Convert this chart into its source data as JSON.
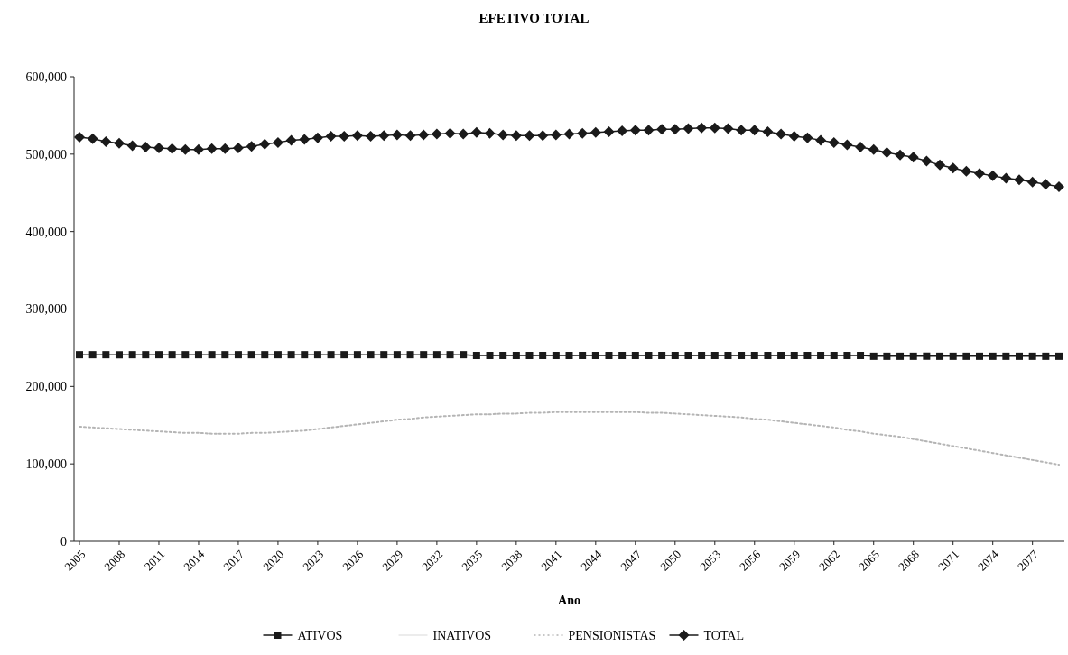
{
  "chart_data": {
    "type": "line",
    "title": "EFETIVO TOTAL",
    "xlabel": "Ano",
    "categories": [
      "2005",
      null,
      null,
      "2008",
      null,
      null,
      "2011",
      null,
      null,
      "2014",
      null,
      null,
      "2017",
      null,
      null,
      "2020",
      null,
      null,
      "2023",
      null,
      null,
      "2026",
      null,
      null,
      "2029",
      null,
      null,
      "2032",
      null,
      null,
      "2035",
      null,
      null,
      "2038",
      null,
      null,
      "2041",
      null,
      null,
      "2044",
      null,
      null,
      "2047",
      null,
      null,
      "2050",
      null,
      null,
      "2053",
      null,
      null,
      "2056",
      null,
      null,
      "2059",
      null,
      null,
      "2062",
      null,
      null,
      "2065",
      null,
      null,
      "2068",
      null,
      null,
      "2071",
      null,
      null,
      "2074",
      null,
      null,
      "2077",
      null,
      null
    ],
    "ylim": [
      0,
      600000
    ],
    "yticks": [
      0,
      {
        "value": 100000,
        "label": "100,000"
      },
      {
        "value": 200000,
        "label": "200,000"
      },
      {
        "value": 300000,
        "label": "300,000"
      },
      {
        "value": 400000,
        "label": "400,000"
      },
      {
        "value": 500000,
        "label": "500,000"
      },
      {
        "value": 600000,
        "label": "600,000"
      }
    ],
    "grid": false,
    "legend": "bottom",
    "series": [
      {
        "name": "ATIVOS",
        "color": "#1a1a1a",
        "marker": "square",
        "line_style": "solid",
        "values": [
          241000,
          241000,
          241000,
          241000,
          241000,
          241000,
          241000,
          241000,
          241000,
          241000,
          241000,
          241000,
          241000,
          241000,
          241000,
          241000,
          241000,
          241000,
          241000,
          241000,
          241000,
          241000,
          241000,
          241000,
          241000,
          241000,
          241000,
          241000,
          241000,
          241000,
          240000,
          240000,
          240000,
          240000,
          240000,
          240000,
          240000,
          240000,
          240000,
          240000,
          240000,
          240000,
          240000,
          240000,
          240000,
          240000,
          240000,
          240000,
          240000,
          240000,
          240000,
          240000,
          240000,
          240000,
          240000,
          240000,
          240000,
          240000,
          240000,
          240000,
          239000,
          239000,
          239000,
          239000,
          239000,
          239000,
          239000,
          239000,
          239000,
          239000,
          239000,
          239000,
          239000,
          239000,
          239000
        ]
      },
      {
        "name": "INATIVOS",
        "color": "#e6e6e6",
        "marker": "none",
        "line_style": "solid",
        "values": [
          null,
          null,
          null,
          null,
          null,
          null,
          null,
          null,
          null,
          null,
          null,
          null,
          null,
          null,
          null,
          null,
          null,
          null,
          null,
          null,
          null,
          null,
          null,
          null,
          null,
          null,
          null,
          null,
          null,
          null,
          null,
          null,
          null,
          null,
          null,
          null,
          null,
          null,
          null,
          null,
          null,
          null,
          null,
          null,
          null,
          null,
          null,
          null,
          null,
          null,
          null,
          null,
          null,
          null,
          null,
          null,
          null,
          null,
          null,
          null,
          null,
          null,
          null,
          null,
          null,
          null,
          null,
          null,
          null,
          null,
          null,
          null,
          null,
          null,
          null
        ]
      },
      {
        "name": "PENSIONISTAS",
        "color": "#b5b5b5",
        "marker": "none",
        "line_style": "dotted",
        "values": [
          148000,
          147000,
          146000,
          145000,
          144000,
          143000,
          142000,
          141000,
          140000,
          140000,
          139000,
          139000,
          139000,
          140000,
          140000,
          141000,
          142000,
          143000,
          145000,
          147000,
          149000,
          151000,
          153000,
          155000,
          157000,
          158000,
          160000,
          161000,
          162000,
          163000,
          164000,
          164000,
          165000,
          165000,
          166000,
          166000,
          167000,
          167000,
          167000,
          167000,
          167000,
          167000,
          167000,
          166000,
          166000,
          165000,
          164000,
          163000,
          162000,
          161000,
          160000,
          158000,
          157000,
          155000,
          153000,
          151000,
          149000,
          147000,
          144000,
          142000,
          139000,
          137000,
          135000,
          132000,
          129000,
          126000,
          123000,
          120000,
          117000,
          114000,
          111000,
          108000,
          105000,
          102000,
          99000
        ]
      },
      {
        "name": "TOTAL",
        "color": "#1a1a1a",
        "marker": "diamond",
        "line_style": "solid",
        "values": [
          522000,
          520000,
          516000,
          514000,
          511000,
          509000,
          508000,
          507000,
          506000,
          506000,
          507000,
          507000,
          508000,
          510000,
          513000,
          515000,
          518000,
          519000,
          521000,
          523000,
          523000,
          524000,
          523000,
          524000,
          525000,
          524000,
          525000,
          526000,
          527000,
          526000,
          528000,
          527000,
          525000,
          524000,
          524000,
          524000,
          525000,
          526000,
          527000,
          528000,
          529000,
          530000,
          531000,
          531000,
          532000,
          532000,
          533000,
          534000,
          534000,
          533000,
          531000,
          531000,
          529000,
          526000,
          523000,
          521000,
          518000,
          515000,
          512000,
          509000,
          506000,
          502000,
          499000,
          496000,
          491000,
          486000,
          482000,
          478000,
          475000,
          472000,
          469000,
          467000,
          464000,
          461000,
          458000
        ]
      }
    ]
  }
}
